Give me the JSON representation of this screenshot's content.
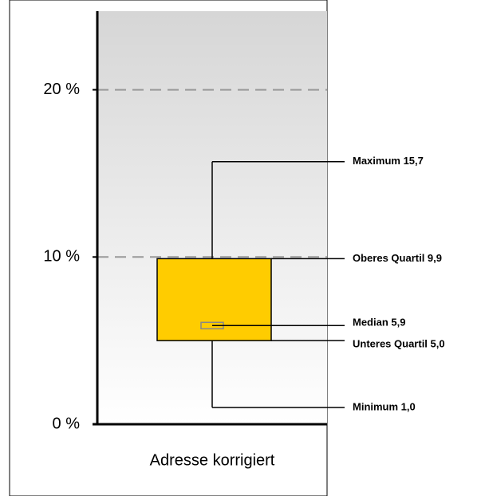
{
  "chart_data": {
    "type": "box",
    "categories": [
      "Adresse korrigiert"
    ],
    "stats": {
      "min": 1.0,
      "q1": 5.0,
      "median": 5.9,
      "q3": 9.9,
      "max": 15.7
    },
    "stat_labels": {
      "max": "Maximum 15,7",
      "q3": "Oberes Quartil 9,9",
      "median": "Median 5,9",
      "q1": "Unteres Quartil 5,0",
      "min": "Minimum 1,0"
    },
    "color": "#ffcc00",
    "ylim": [
      0,
      24.7
    ],
    "yticks": [
      {
        "value": 0,
        "label": "0 %"
      },
      {
        "value": 10,
        "label": "10 %"
      },
      {
        "value": 20,
        "label": "20 %"
      }
    ],
    "grid": true
  }
}
